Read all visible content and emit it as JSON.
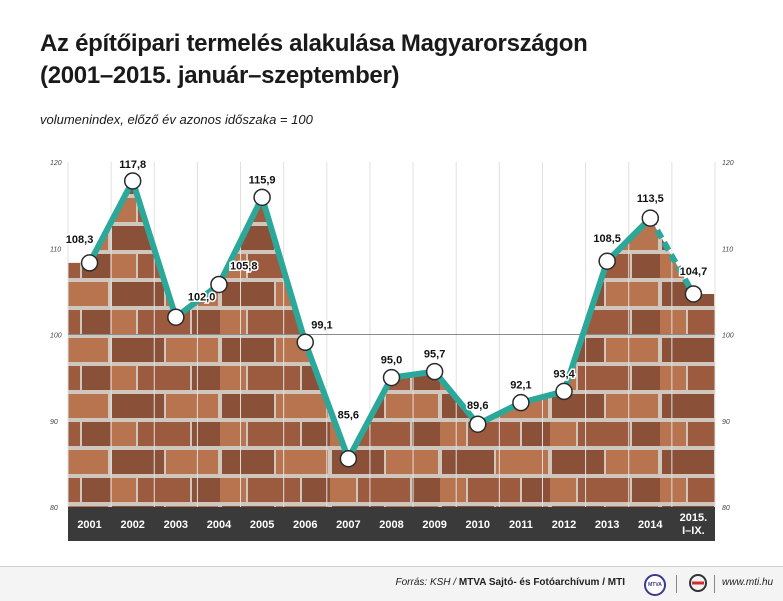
{
  "title_line1": "Az építőipari termelés alakulása Magyarországon",
  "title_line2": "(2001–2015. január–szeptember)",
  "subtitle": "volumenindex, előző év azonos időszaka = 100",
  "footer": {
    "source_prefix": "Forrás: KSH / ",
    "source_bold": "MTVA Sajtó- és Fotóarchívum / MTI",
    "site": "www.mti.hu",
    "mtva_logo_text": "MTVA"
  },
  "colors": {
    "line": "#2ba89a",
    "marker_fill": "#ffffff",
    "marker_stroke": "#2a2a2a",
    "axis_band": "#3a3a3a",
    "brick_dark": "#8a5038",
    "brick_light": "#b8734f"
  },
  "chart_data": {
    "type": "line",
    "title": "Az építőipari termelés alakulása Magyarországon (2001–2015. január–szeptember)",
    "subtitle": "volumenindex, előző év azonos időszaka = 100",
    "categories": [
      "2001",
      "2002",
      "2003",
      "2004",
      "2005",
      "2006",
      "2007",
      "2008",
      "2009",
      "2010",
      "2011",
      "2012",
      "2013",
      "2014",
      "2015. I–IX."
    ],
    "series": [
      {
        "values": [
          108.3,
          117.8,
          102.0,
          105.8,
          115.9,
          99.1,
          85.6,
          95.0,
          95.7,
          89.6,
          92.1,
          93.4,
          108.5,
          113.5,
          104.7
        ],
        "labels": [
          "108,3",
          "117,8",
          "102,0",
          "105,8",
          "115,9",
          "99,1",
          "85,6",
          "95,0",
          "95,7",
          "89,6",
          "92,1",
          "93,4",
          "108,5",
          "113,5",
          "104,7"
        ]
      }
    ],
    "ylim": [
      80,
      120
    ],
    "yticks": [
      "80",
      "90",
      "100",
      "110",
      "120"
    ],
    "reference_line": 100,
    "grid": true,
    "last_segment_dashed": true
  }
}
